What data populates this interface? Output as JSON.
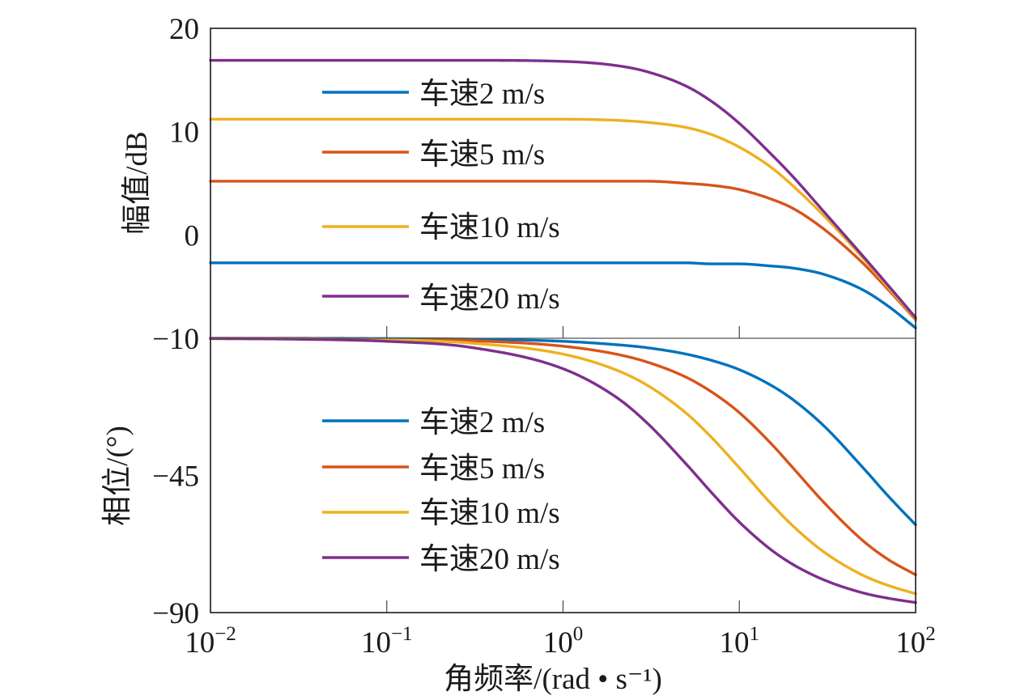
{
  "chart_data": [
    {
      "type": "line",
      "xscale": "log",
      "xlim": [
        0.01,
        100
      ],
      "ylim": [
        -10,
        20
      ],
      "yticks": [
        20,
        10,
        0,
        -10
      ],
      "ytick_labels": [
        "20",
        "10",
        "0",
        "−10"
      ],
      "xticks": [
        0.01,
        0.1,
        1,
        10,
        100
      ],
      "ylabel": "幅值/dB",
      "grid": false,
      "legend": "left",
      "x": [
        0.01,
        0.03,
        0.1,
        0.3,
        1,
        2,
        3,
        5,
        7,
        10,
        15,
        20,
        30,
        50,
        70,
        100
      ],
      "series": [
        {
          "name": "车速2 m/s",
          "color": "#0072BD",
          "values": [
            -2.7,
            -2.7,
            -2.7,
            -2.7,
            -2.7,
            -2.7,
            -2.7,
            -2.7,
            -2.8,
            -2.8,
            -3.0,
            -3.2,
            -3.8,
            -5.3,
            -6.9,
            -9.0
          ]
        },
        {
          "name": "车速5 m/s",
          "color": "#D95319",
          "values": [
            5.2,
            5.2,
            5.2,
            5.2,
            5.2,
            5.2,
            5.2,
            5.0,
            4.8,
            4.4,
            3.5,
            2.6,
            0.6,
            -2.7,
            -5.3,
            -8.2
          ]
        },
        {
          "name": "车速10 m/s",
          "color": "#EDB120",
          "values": [
            11.2,
            11.2,
            11.2,
            11.2,
            11.2,
            11.1,
            10.9,
            10.4,
            9.7,
            8.5,
            6.6,
            4.8,
            1.9,
            -2.2,
            -5.1,
            -8.1
          ]
        },
        {
          "name": "车速20 m/s",
          "color": "#7E2F8E",
          "values": [
            16.9,
            16.9,
            16.9,
            16.9,
            16.8,
            16.4,
            15.8,
            14.4,
            12.9,
            10.8,
            7.9,
            5.7,
            2.3,
            -2.0,
            -4.9,
            -8.0
          ]
        }
      ]
    },
    {
      "type": "line",
      "xscale": "log",
      "xlim": [
        0.01,
        100
      ],
      "ylim": [
        -90,
        0
      ],
      "yticks": [
        -45,
        -90
      ],
      "ytick_labels": [
        "−45",
        "−90"
      ],
      "xticks": [
        0.01,
        0.1,
        1,
        10,
        100
      ],
      "xtick_labels": [
        {
          "base": "10",
          "exp": "−2"
        },
        {
          "base": "10",
          "exp": "−1"
        },
        {
          "base": "10",
          "exp": "0"
        },
        {
          "base": "10",
          "exp": "1"
        },
        {
          "base": "10",
          "exp": "2"
        }
      ],
      "xlabel": "角频率/(rad • s⁻¹)",
      "ylabel": "相位/(°)",
      "grid": false,
      "legend": "left",
      "x": [
        0.01,
        0.03,
        0.1,
        0.3,
        1,
        2,
        3,
        5,
        7,
        10,
        15,
        20,
        30,
        50,
        70,
        100
      ],
      "series": [
        {
          "name": "车速2 m/s",
          "color": "#0072BD",
          "values": [
            0.0,
            0.0,
            -0.1,
            -0.3,
            -1.0,
            -2.1,
            -3.1,
            -5.2,
            -7.3,
            -10.3,
            -15.3,
            -20.0,
            -28.6,
            -42.3,
            -51.8,
            -61.2
          ]
        },
        {
          "name": "车速5 m/s",
          "color": "#D95319",
          "values": [
            0.0,
            -0.1,
            -0.3,
            -0.8,
            -2.6,
            -5.2,
            -7.8,
            -12.8,
            -17.7,
            -24.4,
            -34.3,
            -42.3,
            -53.7,
            -66.3,
            -72.6,
            -77.6
          ]
        },
        {
          "name": "车速10 m/s",
          "color": "#EDB120",
          "values": [
            -0.1,
            -0.2,
            -0.5,
            -1.6,
            -5.2,
            -10.4,
            -15.4,
            -24.6,
            -32.7,
            -42.5,
            -54.0,
            -61.4,
            -70.0,
            -77.7,
            -81.1,
            -83.8
          ]
        },
        {
          "name": "车速20 m/s",
          "color": "#7E2F8E",
          "values": [
            -0.1,
            -0.3,
            -1.0,
            -3.0,
            -10.0,
            -19.3,
            -27.8,
            -41.3,
            -50.8,
            -60.3,
            -69.2,
            -74.1,
            -79.2,
            -83.5,
            -85.3,
            -86.7
          ]
        }
      ]
    }
  ]
}
